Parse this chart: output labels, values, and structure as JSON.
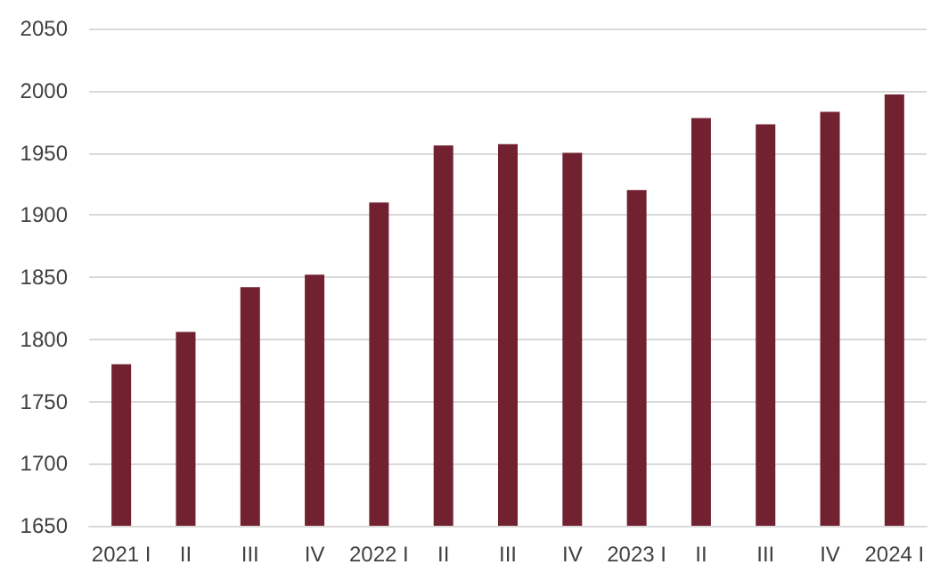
{
  "chart_data": {
    "type": "bar",
    "categories": [
      "2021 I",
      "II",
      "III",
      "IV",
      "2022 I",
      "II",
      "III",
      "IV",
      "2023 I",
      "II",
      "III",
      "IV",
      "2024 I"
    ],
    "values": [
      1780,
      1806,
      1842,
      1852,
      1910,
      1956,
      1957,
      1950,
      1920,
      1978,
      1973,
      1983,
      1997
    ],
    "color": "#722130",
    "ylim": [
      1650,
      2050
    ],
    "yticks": [
      1650,
      1700,
      1750,
      1800,
      1850,
      1900,
      1950,
      2000,
      2050
    ],
    "grid": "y"
  }
}
